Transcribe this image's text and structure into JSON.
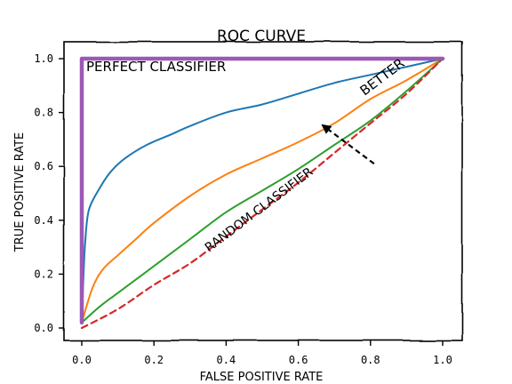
{
  "chart_data": {
    "type": "line",
    "title": "ROC CURVE",
    "xlabel": "FALSE POSITIVE RATE",
    "ylabel": "TRUE POSITIVE RATE",
    "xlim": [
      0,
      1
    ],
    "ylim": [
      0,
      1
    ],
    "xticks": [
      0.0,
      0.2,
      0.4,
      0.6,
      0.8,
      1.0
    ],
    "yticks": [
      0.0,
      0.2,
      0.4,
      0.6,
      0.8,
      1.0
    ],
    "xtick_labels": [
      "0.0",
      "0.2",
      "0.4",
      "0.6",
      "0.8",
      "1.0"
    ],
    "ytick_labels": [
      "0.0",
      "0.2",
      "0.4",
      "0.6",
      "0.8",
      "1.0"
    ],
    "grid": false,
    "series": [
      {
        "color": "#1f77b4",
        "style": "solid",
        "points": [
          [
            0,
            0.02
          ],
          [
            0.005,
            0.2
          ],
          [
            0.01,
            0.33
          ],
          [
            0.02,
            0.44
          ],
          [
            0.05,
            0.52
          ],
          [
            0.08,
            0.58
          ],
          [
            0.12,
            0.63
          ],
          [
            0.18,
            0.68
          ],
          [
            0.25,
            0.72
          ],
          [
            0.3,
            0.75
          ],
          [
            0.4,
            0.8
          ],
          [
            0.5,
            0.83
          ],
          [
            0.6,
            0.87
          ],
          [
            0.7,
            0.91
          ],
          [
            0.8,
            0.94
          ],
          [
            0.9,
            0.97
          ],
          [
            1.0,
            1.0
          ]
        ]
      },
      {
        "color": "#ff7f0e",
        "style": "solid",
        "points": [
          [
            0,
            0.02
          ],
          [
            0.03,
            0.15
          ],
          [
            0.06,
            0.22
          ],
          [
            0.1,
            0.27
          ],
          [
            0.15,
            0.33
          ],
          [
            0.2,
            0.39
          ],
          [
            0.3,
            0.49
          ],
          [
            0.4,
            0.57
          ],
          [
            0.5,
            0.63
          ],
          [
            0.6,
            0.69
          ],
          [
            0.7,
            0.76
          ],
          [
            0.8,
            0.85
          ],
          [
            0.9,
            0.92
          ],
          [
            1.0,
            1.0
          ]
        ]
      },
      {
        "color": "#2ca02c",
        "style": "solid",
        "points": [
          [
            0,
            0.02
          ],
          [
            0.05,
            0.08
          ],
          [
            0.1,
            0.13
          ],
          [
            0.2,
            0.23
          ],
          [
            0.3,
            0.33
          ],
          [
            0.4,
            0.43
          ],
          [
            0.5,
            0.51
          ],
          [
            0.6,
            0.59
          ],
          [
            0.7,
            0.68
          ],
          [
            0.8,
            0.77
          ],
          [
            0.9,
            0.88
          ],
          [
            1.0,
            1.0
          ]
        ]
      },
      {
        "name": "RANDOM CLASSIFIER",
        "color": "#d62728",
        "style": "dashed",
        "points": [
          [
            0,
            0
          ],
          [
            0.1,
            0.07
          ],
          [
            0.2,
            0.16
          ],
          [
            0.3,
            0.24
          ],
          [
            0.4,
            0.34
          ],
          [
            0.5,
            0.44
          ],
          [
            0.6,
            0.54
          ],
          [
            0.7,
            0.65
          ],
          [
            0.8,
            0.76
          ],
          [
            0.9,
            0.87
          ],
          [
            1.0,
            1.0
          ]
        ]
      },
      {
        "name": "PERFECT CLASSIFIER",
        "color": "#9b59b6",
        "style": "solid",
        "points": [
          [
            0,
            0.02
          ],
          [
            0,
            1.0
          ],
          [
            1.0,
            1.0
          ]
        ]
      }
    ],
    "annotations": [
      {
        "text": "PERFECT CLASSIFIER",
        "color": "#7733cc"
      },
      {
        "text": "RANDOM CLASSIFIER",
        "color": "#d62728"
      },
      {
        "text": "BETTER",
        "color": "#000000",
        "arrow": {
          "from": [
            0.81,
            0.61
          ],
          "to": [
            0.67,
            0.75
          ]
        }
      }
    ]
  }
}
